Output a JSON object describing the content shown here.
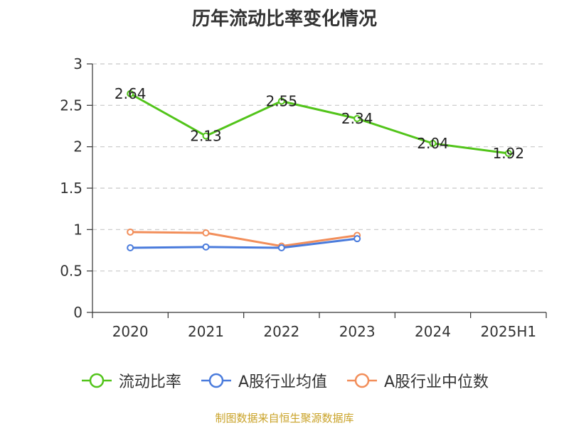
{
  "chart_data": {
    "type": "line",
    "title": "历年流动比率变化情况",
    "categories": [
      "2020",
      "2021",
      "2022",
      "2023",
      "2024",
      "2025H1"
    ],
    "ylim": [
      0,
      3
    ],
    "yticks": [
      "0",
      "0.5",
      "1",
      "1.5",
      "2",
      "2.5",
      "3"
    ],
    "grid": true,
    "legend_position": "bottom",
    "series": [
      {
        "name": "流动比率",
        "color": "#52c41a",
        "values": [
          2.64,
          2.13,
          2.55,
          2.34,
          2.04,
          1.92
        ],
        "labels": [
          "2.64",
          "2.13",
          "2.55",
          "2.34",
          "2.04",
          "1.92"
        ]
      },
      {
        "name": "A股行业均值",
        "color": "#4a7bdc",
        "values": [
          0.78,
          0.79,
          0.78,
          0.89,
          null,
          null
        ]
      },
      {
        "name": "A股行业中位数",
        "color": "#f28e5a",
        "values": [
          0.97,
          0.96,
          0.8,
          0.93,
          null,
          null
        ]
      }
    ]
  },
  "source_note": "制图数据来自恒生聚源数据库"
}
